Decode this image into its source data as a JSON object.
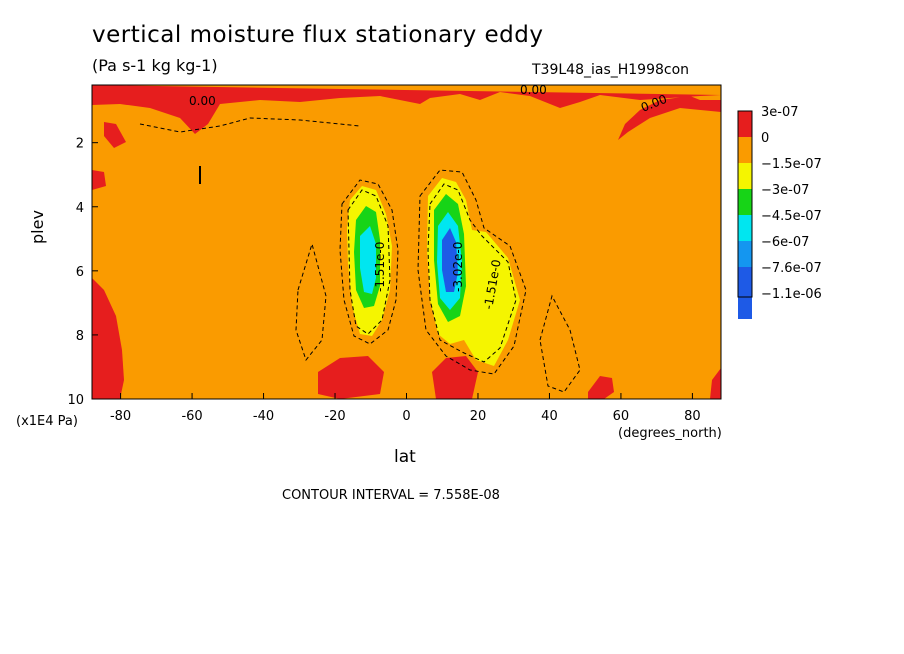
{
  "chart_data": {
    "type": "heatmap",
    "title": "vertical moisture flux stationary eddy",
    "units": "(Pa s-1 kg kg-1)",
    "run_label": "T39L48_ias_H1998con",
    "xlabel": "lat",
    "x_unit": "(degrees_north)",
    "ylabel": "plev",
    "y_unit": "(x1E4 Pa)",
    "contour_interval": "CONTOUR INTERVAL = 7.558E-08",
    "xlim": [
      -88,
      88
    ],
    "ylim": [
      10,
      0.2
    ],
    "x_ticks": [
      "-80",
      "-60",
      "-40",
      "-20",
      "0",
      "20",
      "40",
      "60",
      "80"
    ],
    "y_ticks": [
      "2",
      "4",
      "6",
      "8",
      "10"
    ],
    "legend": [
      {
        "label": "3e-07",
        "color": "#e61e1e"
      },
      {
        "label": "0",
        "color": "#fa9b00"
      },
      {
        "label": "−1.5e-07",
        "color": "#f5f500"
      },
      {
        "label": "−3e-07",
        "color": "#17d417"
      },
      {
        "label": "−4.5e-07",
        "color": "#00e6f0"
      },
      {
        "label": "−6e-07",
        "color": "#1496f0"
      },
      {
        "label": "−7.6e-07",
        "color": "#1e5ae6"
      },
      {
        "label": "−1.1e-06",
        "color": "#f0f0f0"
      }
    ],
    "contour_labels": [
      "0.00",
      "0.00",
      "0.00",
      "-1.51e-0",
      "-1.51e-0",
      "-3.02e-0"
    ],
    "features": [
      {
        "name": "southern-minimum",
        "lat": -12,
        "plev": 5.5,
        "min_value": -6e-07
      },
      {
        "name": "northern-minimum",
        "lat": 13,
        "plev": 5.5,
        "min_value": -7.6e-07
      },
      {
        "name": "positive-top-band",
        "plev": 0.5,
        "value": 3e-07
      },
      {
        "name": "positive-south-surface",
        "lat": -85,
        "plev": 7.5,
        "value": 3e-07
      }
    ]
  }
}
